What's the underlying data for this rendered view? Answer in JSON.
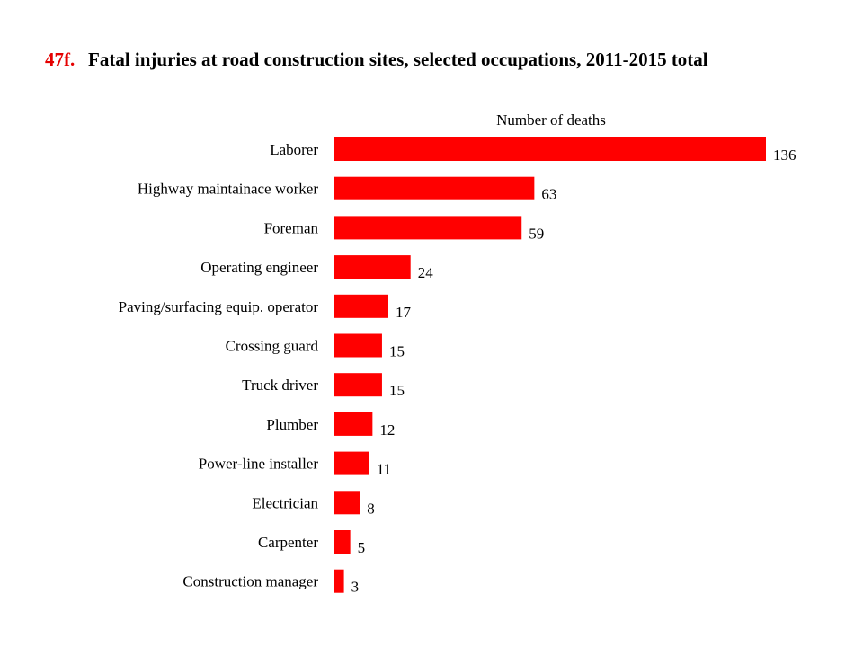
{
  "chart_data": {
    "type": "bar",
    "orientation": "horizontal",
    "chart_id": "47f.",
    "title": "Fatal injuries at road construction sites, selected occupations, 2011-2015 total",
    "xlabel": "Number of deaths",
    "ylabel": "",
    "categories": [
      "Laborer",
      "Highway maintainace worker",
      "Foreman",
      "Operating engineer",
      "Paving/surfacing equip. operator",
      "Crossing guard",
      "Truck driver",
      "Plumber",
      "Power-line installer",
      "Electrician",
      "Carpenter",
      "Construction manager"
    ],
    "values": [
      136,
      63,
      59,
      24,
      17,
      15,
      15,
      12,
      11,
      8,
      5,
      3
    ],
    "xlim": [
      0,
      136
    ],
    "bar_color": "#ff0000",
    "accent_color": "#e50000",
    "data_labels": true,
    "grid": false,
    "legend": "none"
  }
}
